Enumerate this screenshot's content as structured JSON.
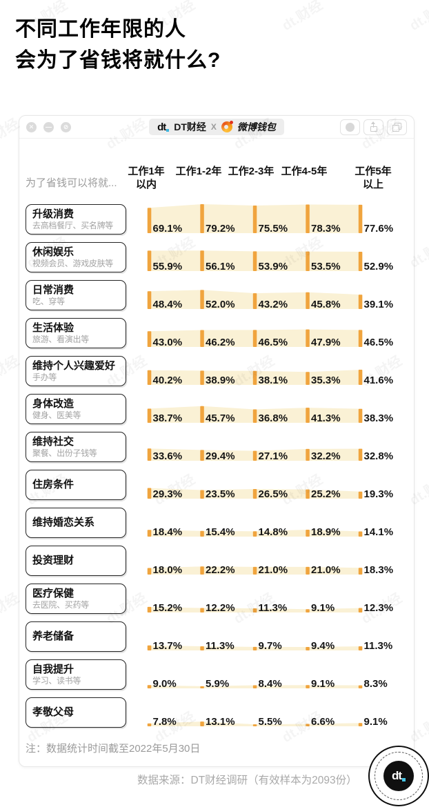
{
  "page": {
    "title_line1": "不同工作年限的人",
    "title_line2": "会为了省钱将就什么?",
    "note": "注：数据统计时间截至2022年5月30日",
    "source": "数据来源：DT财经调研（有效样本为2093份）",
    "watermark": "dt.财经"
  },
  "window": {
    "badge": {
      "logo_text": "dt",
      "brand1": "DT财经",
      "separator": "X",
      "brand2": "微博钱包"
    },
    "controls_left": [
      {
        "name": "close-icon",
        "glyph": "✕"
      },
      {
        "name": "minimize-icon",
        "glyph": "—"
      },
      {
        "name": "block-icon",
        "glyph": "⊘"
      }
    ],
    "seal_logo_text": "dt"
  },
  "chart_data": {
    "type": "bar",
    "title": "不同工作年限的人会为了省钱将就什么?",
    "row_axis_label": "为了省钱可以将就...",
    "columns": [
      "工作1年以内",
      "工作1-2年",
      "工作2-3年",
      "工作4-5年",
      "工作5年以上"
    ],
    "columns_display": [
      [
        "工作1年",
        "以内"
      ],
      [
        "工作1-2年"
      ],
      [
        "工作2-3年"
      ],
      [
        "工作4-5年"
      ],
      [
        "工作5年",
        "以上"
      ]
    ],
    "value_suffix": "%",
    "ylim": [
      0,
      100
    ],
    "colors": {
      "bar": "#F0A43E",
      "band": "#FAF1D5"
    },
    "rows": [
      {
        "title": "升级消费",
        "subtitle": "去高档餐厅、买名牌等",
        "values": [
          69.1,
          79.2,
          75.5,
          78.3,
          77.6
        ],
        "labels": [
          "69.1%",
          "79.2%",
          "75.5%",
          "78.3%",
          "77.6%"
        ]
      },
      {
        "title": "休闲娱乐",
        "subtitle": "视频会员、游戏皮肤等",
        "values": [
          55.9,
          56.1,
          53.9,
          53.5,
          52.9
        ],
        "labels": [
          "55.9%",
          "56.1%",
          "53.9%",
          "53.5%",
          "52.9%"
        ]
      },
      {
        "title": "日常消费",
        "subtitle": "吃、穿等",
        "values": [
          48.4,
          52.0,
          43.2,
          45.8,
          39.1
        ],
        "labels": [
          "48.4%",
          "52.0%",
          "43.2%",
          "45.8%",
          "39.1%"
        ]
      },
      {
        "title": "生活体验",
        "subtitle": "旅游、看演出等",
        "values": [
          43.0,
          46.2,
          46.5,
          47.9,
          46.5
        ],
        "labels": [
          "43.0%",
          "46.2%",
          "46.5%",
          "47.9%",
          "46.5%"
        ]
      },
      {
        "title": "维持个人兴趣爱好",
        "subtitle": "手办等",
        "values": [
          40.2,
          38.9,
          38.1,
          35.3,
          41.6
        ],
        "labels": [
          "40.2%",
          "38.9%",
          "38.1%",
          "35.3%",
          "41.6%"
        ]
      },
      {
        "title": "身体改造",
        "subtitle": "健身、医美等",
        "values": [
          38.7,
          45.7,
          36.8,
          41.3,
          38.3
        ],
        "labels": [
          "38.7%",
          "45.7%",
          "36.8%",
          "41.3%",
          "38.3%"
        ]
      },
      {
        "title": "维持社交",
        "subtitle": "聚餐、出份子钱等",
        "values": [
          33.6,
          29.4,
          27.1,
          32.2,
          32.8
        ],
        "labels": [
          "33.6%",
          "29.4%",
          "27.1%",
          "32.2%",
          "32.8%"
        ]
      },
      {
        "title": "住房条件",
        "subtitle": "",
        "values": [
          29.3,
          23.5,
          26.5,
          25.2,
          19.3
        ],
        "labels": [
          "29.3%",
          "23.5%",
          "26.5%",
          "25.2%",
          "19.3%"
        ]
      },
      {
        "title": "维持婚恋关系",
        "subtitle": "",
        "values": [
          18.4,
          15.4,
          14.8,
          18.9,
          14.1
        ],
        "labels": [
          "18.4%",
          "15.4%",
          "14.8%",
          "18.9%",
          "14.1%"
        ]
      },
      {
        "title": "投资理财",
        "subtitle": "",
        "values": [
          18.0,
          22.2,
          21.0,
          21.0,
          18.3
        ],
        "labels": [
          "18.0%",
          "22.2%",
          "21.0%",
          "21.0%",
          "18.3%"
        ]
      },
      {
        "title": "医疗保健",
        "subtitle": "去医院、买药等",
        "values": [
          15.2,
          12.2,
          11.3,
          9.1,
          12.3
        ],
        "labels": [
          "15.2%",
          "12.2%",
          "11.3%",
          "9.1%",
          "12.3%"
        ]
      },
      {
        "title": "养老储备",
        "subtitle": "",
        "values": [
          13.7,
          11.3,
          9.7,
          9.4,
          11.3
        ],
        "labels": [
          "13.7%",
          "11.3%",
          "9.7%",
          "9.4%",
          "11.3%"
        ]
      },
      {
        "title": "自我提升",
        "subtitle": "学习、读书等",
        "values": [
          9.0,
          5.9,
          8.4,
          9.1,
          8.3
        ],
        "labels": [
          "9.0%",
          "5.9%",
          "8.4%",
          "9.1%",
          "8.3%"
        ]
      },
      {
        "title": "孝敬父母",
        "subtitle": "",
        "values": [
          7.8,
          13.1,
          5.5,
          6.6,
          9.1
        ],
        "labels": [
          "7.8%",
          "13.1%",
          "5.5%",
          "6.6%",
          "9.1%"
        ]
      }
    ]
  }
}
